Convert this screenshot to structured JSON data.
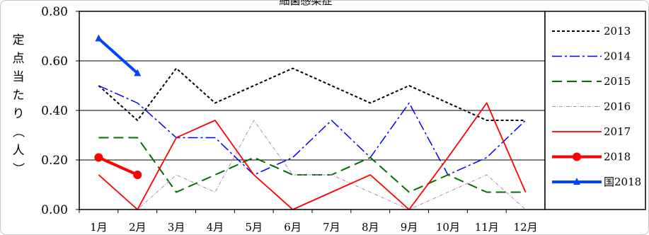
{
  "chart_data": {
    "type": "line",
    "title": "細菌感染症",
    "ylabel": "定点当たり（人）",
    "xlabel": "",
    "categories": [
      "1月",
      "2月",
      "3月",
      "4月",
      "5月",
      "6月",
      "7月",
      "8月",
      "9月",
      "10月",
      "11月",
      "12月"
    ],
    "ylim": [
      0,
      0.8
    ],
    "yticks": [
      "0.00",
      "0.20",
      "0.40",
      "0.60",
      "0.80"
    ],
    "ytick_values": [
      0,
      0.2,
      0.4,
      0.6,
      0.8
    ],
    "grid": "horizontal",
    "legend_position": "right",
    "series": [
      {
        "name": "2013",
        "color": "#000000",
        "dash": "4,3",
        "width": 2,
        "marker": "none",
        "values": [
          0.5,
          0.36,
          0.57,
          0.43,
          0.5,
          0.57,
          0.5,
          0.43,
          0.5,
          0.43,
          0.36,
          0.36
        ]
      },
      {
        "name": "2014",
        "color": "#0000ff",
        "dash": "14,4,3,4",
        "width": 1.5,
        "marker": "none",
        "values": [
          0.5,
          0.43,
          0.29,
          0.29,
          0.14,
          0.21,
          0.36,
          0.21,
          0.43,
          0.14,
          0.21,
          0.36
        ]
      },
      {
        "name": "2015",
        "color": "#007000",
        "dash": "14,7",
        "width": 2,
        "marker": "none",
        "values": [
          0.29,
          0.29,
          0.07,
          0.14,
          0.21,
          0.14,
          0.14,
          0.21,
          0.07,
          0.14,
          0.07,
          0.07
        ]
      },
      {
        "name": "2016",
        "color": "#c080c0",
        "dash": "5,2,1,2",
        "width": 1,
        "marker": "none",
        "values": [
          0.0,
          0.0,
          0.14,
          0.07,
          0.36,
          0.14,
          0.14,
          0.07,
          0.0,
          0.07,
          0.14,
          0.0
        ]
      },
      {
        "name": "2017",
        "color": "#ff0000",
        "dash": "",
        "width": 1.8,
        "marker": "none",
        "values": [
          0.14,
          0.0,
          0.29,
          0.36,
          0.14,
          0.0,
          0.07,
          0.14,
          0.0,
          0.21,
          0.43,
          0.07
        ]
      },
      {
        "name": "2018",
        "color": "#ff0000",
        "dash": "",
        "width": 4,
        "marker": "circle",
        "values": [
          0.21,
          0.14,
          null,
          null,
          null,
          null,
          null,
          null,
          null,
          null,
          null,
          null
        ]
      },
      {
        "name": "国2018",
        "color": "#0044ff",
        "dash": "",
        "width": 4,
        "marker": "triangle",
        "values": [
          0.69,
          0.55,
          null,
          null,
          null,
          null,
          null,
          null,
          null,
          null,
          null,
          null
        ]
      }
    ]
  }
}
